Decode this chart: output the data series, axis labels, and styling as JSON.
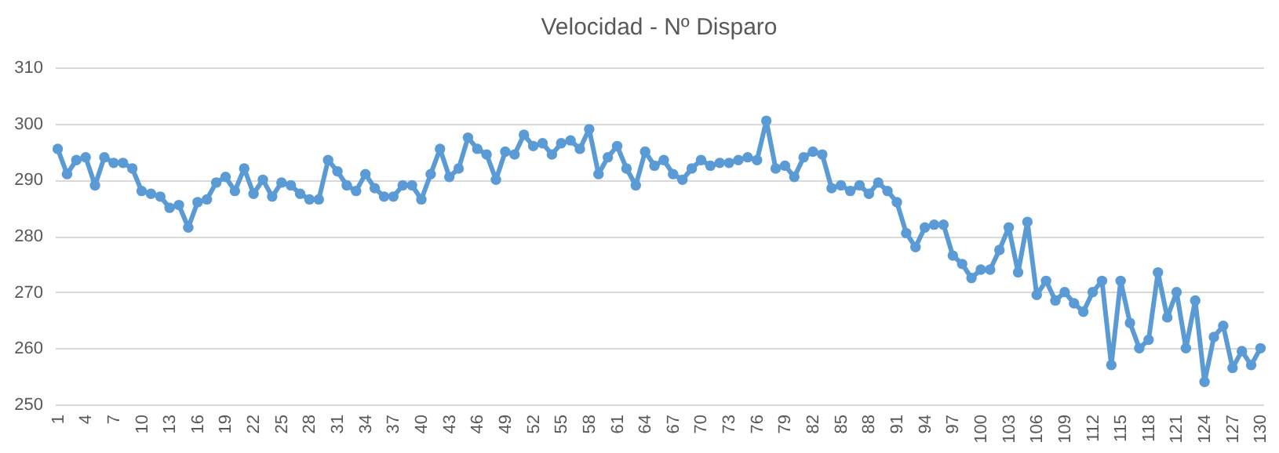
{
  "chart_data": {
    "type": "line",
    "title": "Velocidad - Nº Disparo",
    "categories": [
      "1",
      null,
      null,
      "4",
      null,
      null,
      "7",
      null,
      null,
      "10",
      null,
      null,
      "13",
      null,
      null,
      "16",
      null,
      null,
      "19",
      null,
      null,
      "22",
      null,
      null,
      "25",
      null,
      null,
      "28",
      null,
      null,
      "31",
      null,
      null,
      "34",
      null,
      null,
      "37",
      null,
      null,
      "40",
      null,
      null,
      "43",
      null,
      null,
      "46",
      null,
      null,
      "49",
      null,
      null,
      "52",
      null,
      null,
      "55",
      null,
      null,
      "58",
      null,
      null,
      "61",
      null,
      null,
      "64",
      null,
      null,
      "67",
      null,
      null,
      "70",
      null,
      null,
      "73",
      null,
      null,
      "76",
      null,
      null,
      "79",
      null,
      null,
      "82",
      null,
      null,
      "85",
      null,
      null,
      "88",
      null,
      null,
      "91",
      null,
      null,
      "94",
      null,
      null,
      "97",
      null,
      null,
      "100",
      null,
      null,
      "103",
      null,
      null,
      "106",
      null,
      null,
      "109",
      null,
      null,
      "112",
      null,
      null,
      "115",
      null,
      null,
      "118",
      null,
      null,
      "121",
      null,
      null,
      "124",
      null,
      null,
      "127",
      null,
      null,
      "130"
    ],
    "series": [
      {
        "color": "#5b9bd5",
        "values": [
          295.5,
          291,
          293.5,
          294,
          289,
          294,
          293,
          293,
          292,
          288,
          287.5,
          287,
          285,
          285.5,
          281.5,
          286,
          286.5,
          289.5,
          290.5,
          288,
          292,
          287.5,
          290,
          287,
          289.5,
          289,
          287.5,
          286.5,
          286.5,
          293.5,
          291.5,
          289,
          288,
          291,
          288.5,
          287,
          287,
          289,
          289,
          286.5,
          291,
          295.5,
          290.5,
          292,
          297.5,
          295.5,
          294.5,
          290,
          295,
          294.5,
          298,
          296,
          296.5,
          294.5,
          296.5,
          297,
          295.5,
          299,
          291,
          294,
          296,
          292,
          289,
          295,
          292.5,
          293.5,
          291,
          290,
          292,
          293.5,
          292.5,
          293,
          293,
          293.5,
          294,
          293.5,
          300.5,
          292,
          292.5,
          290.5,
          294,
          295,
          294.5,
          288.5,
          289,
          288,
          289,
          287.5,
          289.5,
          288,
          286,
          280.5,
          278,
          281.5,
          282,
          282,
          276.5,
          275,
          272.5,
          274,
          274,
          277.5,
          281.5,
          273.5,
          282.5,
          269.5,
          272,
          268.5,
          270,
          268,
          266.5,
          270,
          272,
          257,
          272,
          264.5,
          260,
          261.5,
          273.5,
          265.5,
          270,
          260,
          268.5,
          254,
          262,
          264,
          256.5,
          259.5,
          257,
          260
        ]
      }
    ],
    "ylim": [
      250,
      310
    ],
    "yticks": [
      250,
      260,
      270,
      280,
      290,
      300,
      310
    ],
    "grid": "y",
    "marker": "circle",
    "line_style": "solid"
  }
}
